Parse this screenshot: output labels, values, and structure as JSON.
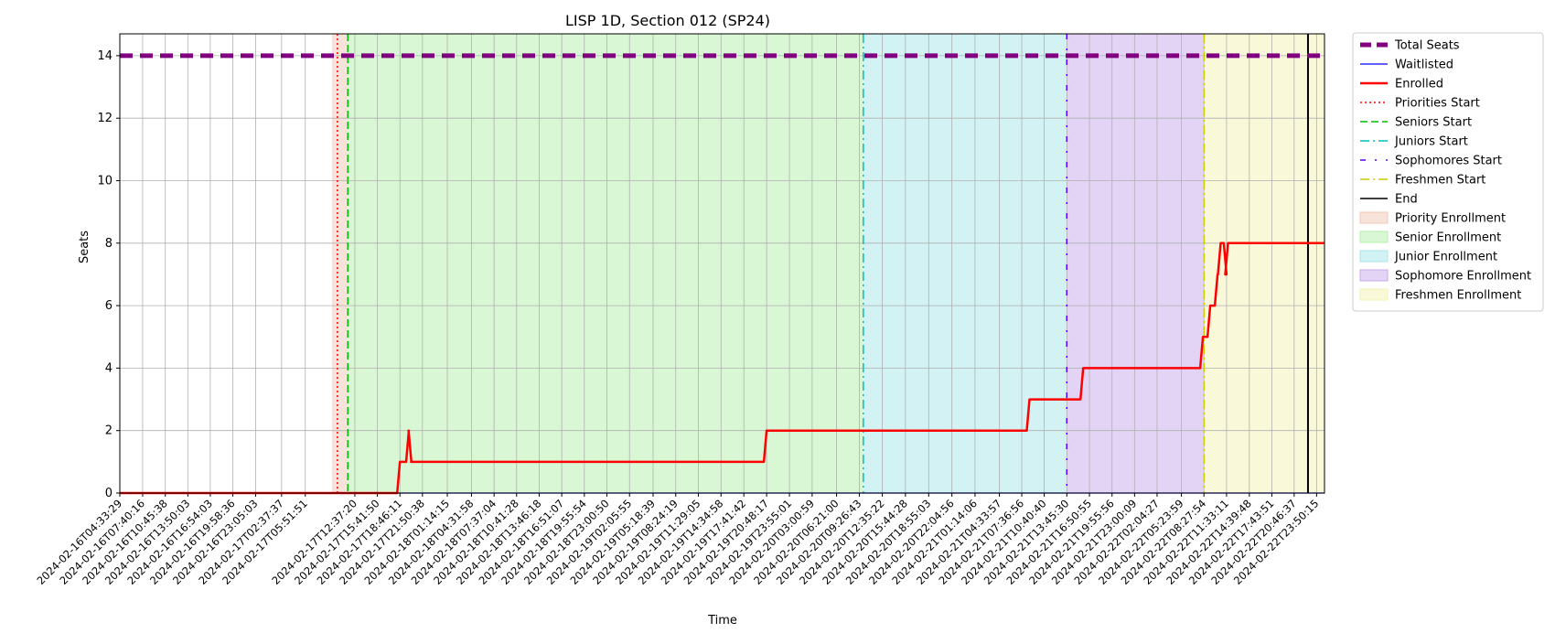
{
  "chart_data": {
    "type": "line",
    "title": "LISP 1D, Section 012 (SP24)",
    "xlabel": "Time",
    "ylabel": "Seats",
    "ylim": [
      0,
      14.7
    ],
    "yticks": [
      0,
      2,
      4,
      6,
      8,
      10,
      12,
      14
    ],
    "xlim": [
      "2024-02-16T04:33:29",
      "2024-02-23T00:55:00"
    ],
    "xtick_labels": [
      "2024-02-16T04:33:29",
      "2024-02-16T07:40:16",
      "2024-02-16T10:45:38",
      "2024-02-16T13:50:03",
      "2024-02-16T16:54:03",
      "2024-02-16T19:58:36",
      "2024-02-16T23:05:03",
      "2024-02-17T02:37:37",
      "2024-02-17T05:51:51",
      "2024-02-17T12:37:20",
      "2024-02-17T15:41:50",
      "2024-02-17T18:46:11",
      "2024-02-17T21:50:38",
      "2024-02-18T01:14:15",
      "2024-02-18T04:31:58",
      "2024-02-18T07:37:04",
      "2024-02-18T10:41:28",
      "2024-02-18T13:46:18",
      "2024-02-18T16:51:07",
      "2024-02-18T19:55:54",
      "2024-02-18T23:00:50",
      "2024-02-19T02:05:55",
      "2024-02-19T05:18:39",
      "2024-02-19T08:24:19",
      "2024-02-19T11:29:05",
      "2024-02-19T14:34:58",
      "2024-02-19T17:41:42",
      "2024-02-19T20:48:17",
      "2024-02-19T23:55:01",
      "2024-02-20T03:00:59",
      "2024-02-20T06:21:00",
      "2024-02-20T09:26:43",
      "2024-02-20T12:35:22",
      "2024-02-20T15:44:28",
      "2024-02-20T18:55:03",
      "2024-02-20T22:04:56",
      "2024-02-21T01:14:06",
      "2024-02-21T04:33:57",
      "2024-02-21T07:36:56",
      "2024-02-21T10:40:40",
      "2024-02-21T13:45:30",
      "2024-02-21T16:50:55",
      "2024-02-21T19:55:56",
      "2024-02-21T23:00:09",
      "2024-02-22T02:04:27",
      "2024-02-22T05:23:59",
      "2024-02-22T08:27:54",
      "2024-02-22T11:33:11",
      "2024-02-22T14:39:48",
      "2024-02-22T17:43:51",
      "2024-02-22T20:46:37",
      "2024-02-22T23:50:15"
    ],
    "grid": true,
    "legend_position": "outside-right",
    "series": [
      {
        "name": "Total Seats",
        "color": "#800080",
        "style": "dashed-thick",
        "x": [
          "2024-02-16T04:33:29",
          "2024-02-23T00:55:00"
        ],
        "y": [
          14,
          14
        ]
      },
      {
        "name": "Waitlisted",
        "color": "#0000ff",
        "style": "solid-thin",
        "x": [
          "2024-02-16T04:33:29",
          "2024-02-23T00:55:00"
        ],
        "y": [
          0,
          0
        ]
      },
      {
        "name": "Enrolled",
        "color": "#ff0000",
        "style": "solid-thick",
        "step": true,
        "x": [
          "2024-02-16T04:33:29",
          "2024-02-17T18:46:11",
          "2024-02-17T20:00:00",
          "2024-02-17T20:20:00",
          "2024-02-17T20:40:00",
          "2024-02-19T20:48:17",
          "2024-02-21T08:40:00",
          "2024-02-21T16:00:00",
          "2024-02-22T08:20:00",
          "2024-02-22T09:20:00",
          "2024-02-22T10:20:00",
          "2024-02-22T10:45:00",
          "2024-02-22T11:33:11",
          "2024-02-22T11:45:00",
          "2024-02-22T12:20:00",
          "2024-02-23T00:55:00"
        ],
        "y": [
          0,
          1,
          2,
          1,
          1,
          2,
          3,
          4,
          5,
          6,
          7,
          8,
          7,
          8,
          8,
          8
        ]
      }
    ],
    "vlines": [
      {
        "name": "Priorities Start",
        "x": "2024-02-17T10:15:00",
        "color": "#ff0000",
        "style": "dotted"
      },
      {
        "name": "Seniors Start",
        "x": "2024-02-17T11:40:00",
        "color": "#00bb00",
        "style": "dashed"
      },
      {
        "name": "Juniors Start",
        "x": "2024-02-20T10:00:00",
        "color": "#00bfbf",
        "style": "dashdot"
      },
      {
        "name": "Sophomores Start",
        "x": "2024-02-21T13:45:30",
        "color": "#5500ff",
        "style": "loose-dashdot"
      },
      {
        "name": "Freshmen Start",
        "x": "2024-02-22T08:30:00",
        "color": "#cccc00",
        "style": "dashdot"
      },
      {
        "name": "End",
        "x": "2024-02-22T22:40:00",
        "color": "#000000",
        "style": "solid"
      }
    ],
    "spans": [
      {
        "name": "Priority Enrollment",
        "start": "2024-02-17T09:30:00",
        "end": "2024-02-17T11:40:00",
        "color": "#f0c8b4"
      },
      {
        "name": "Senior Enrollment",
        "start": "2024-02-17T11:40:00",
        "end": "2024-02-20T10:00:00",
        "color": "#b4f0aa"
      },
      {
        "name": "Junior Enrollment",
        "start": "2024-02-20T10:00:00",
        "end": "2024-02-21T13:45:30",
        "color": "#a5e6ea"
      },
      {
        "name": "Sophomore Enrollment",
        "start": "2024-02-21T13:45:30",
        "end": "2024-02-22T08:30:00",
        "color": "#c8aaeb"
      },
      {
        "name": "Freshmen Enrollment",
        "start": "2024-02-22T08:30:00",
        "end": "2024-02-23T00:55:00",
        "color": "#f3f3b4"
      }
    ],
    "legend": [
      {
        "label": "Total Seats",
        "kind": "line",
        "color": "#800080",
        "style": "dashed-thick"
      },
      {
        "label": "Waitlisted",
        "kind": "line",
        "color": "#0000ff",
        "style": "solid-thin"
      },
      {
        "label": "Enrolled",
        "kind": "line",
        "color": "#ff0000",
        "style": "solid-thick"
      },
      {
        "label": "Priorities Start",
        "kind": "line",
        "color": "#ff0000",
        "style": "dotted"
      },
      {
        "label": "Seniors Start",
        "kind": "line",
        "color": "#00bb00",
        "style": "dashed"
      },
      {
        "label": "Juniors Start",
        "kind": "line",
        "color": "#00bfbf",
        "style": "dashdot"
      },
      {
        "label": "Sophomores Start",
        "kind": "line",
        "color": "#5500ff",
        "style": "loose-dashdot"
      },
      {
        "label": "Freshmen Start",
        "kind": "line",
        "color": "#cccc00",
        "style": "dashdot"
      },
      {
        "label": "End",
        "kind": "line",
        "color": "#000000",
        "style": "solid"
      },
      {
        "label": "Priority Enrollment",
        "kind": "patch",
        "color": "#f0c8b4"
      },
      {
        "label": "Senior Enrollment",
        "kind": "patch",
        "color": "#b4f0aa"
      },
      {
        "label": "Junior Enrollment",
        "kind": "patch",
        "color": "#a5e6ea"
      },
      {
        "label": "Sophomore Enrollment",
        "kind": "patch",
        "color": "#c8aaeb"
      },
      {
        "label": "Freshmen Enrollment",
        "kind": "patch",
        "color": "#f3f3b4"
      }
    ]
  }
}
